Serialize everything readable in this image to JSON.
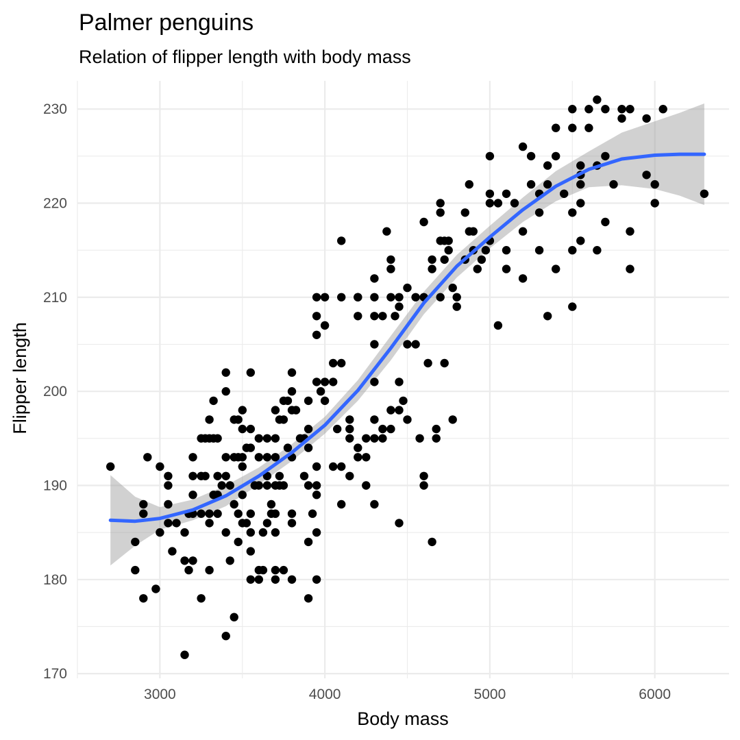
{
  "chart_data": {
    "type": "scatter",
    "title": "Palmer penguins",
    "subtitle": "Relation of flipper length with body mass",
    "xlabel": "Body mass",
    "ylabel": "Flipper length",
    "xlim": [
      2500,
      6450
    ],
    "ylim": [
      169.5,
      233
    ],
    "x_ticks": [
      3000,
      4000,
      5000,
      6000
    ],
    "y_ticks": [
      170,
      180,
      190,
      200,
      210,
      220,
      230
    ],
    "grid": true,
    "legend": "none",
    "colors": {
      "points": "#000000",
      "smooth_line": "#3366FF",
      "ribbon": "#999999"
    },
    "points": [
      [
        2700,
        192
      ],
      [
        2850,
        184
      ],
      [
        2850,
        181
      ],
      [
        2900,
        188
      ],
      [
        2900,
        187
      ],
      [
        2900,
        178
      ],
      [
        2925,
        193
      ],
      [
        2975,
        179
      ],
      [
        3000,
        185
      ],
      [
        3000,
        192
      ],
      [
        3050,
        191
      ],
      [
        3050,
        190
      ],
      [
        3050,
        186
      ],
      [
        3050,
        188
      ],
      [
        3075,
        183
      ],
      [
        3100,
        186
      ],
      [
        3150,
        185
      ],
      [
        3150,
        182
      ],
      [
        3150,
        172
      ],
      [
        3175,
        181
      ],
      [
        3175,
        187
      ],
      [
        3200,
        182
      ],
      [
        3200,
        191
      ],
      [
        3200,
        187
      ],
      [
        3200,
        193
      ],
      [
        3200,
        189
      ],
      [
        3250,
        195
      ],
      [
        3250,
        187
      ],
      [
        3250,
        178
      ],
      [
        3250,
        191
      ],
      [
        3275,
        191
      ],
      [
        3275,
        195
      ],
      [
        3300,
        186
      ],
      [
        3300,
        187
      ],
      [
        3300,
        197
      ],
      [
        3300,
        195
      ],
      [
        3300,
        181
      ],
      [
        3325,
        195
      ],
      [
        3325,
        199
      ],
      [
        3325,
        189
      ],
      [
        3350,
        195
      ],
      [
        3350,
        191
      ],
      [
        3350,
        187
      ],
      [
        3350,
        189
      ],
      [
        3375,
        190
      ],
      [
        3400,
        185
      ],
      [
        3400,
        191
      ],
      [
        3400,
        193
      ],
      [
        3400,
        200
      ],
      [
        3400,
        202
      ],
      [
        3400,
        174
      ],
      [
        3425,
        182
      ],
      [
        3425,
        190
      ],
      [
        3450,
        197
      ],
      [
        3450,
        193
      ],
      [
        3450,
        188
      ],
      [
        3450,
        176
      ],
      [
        3475,
        184
      ],
      [
        3475,
        187
      ],
      [
        3475,
        193
      ],
      [
        3475,
        197
      ],
      [
        3500,
        196
      ],
      [
        3500,
        189
      ],
      [
        3500,
        198
      ],
      [
        3500,
        192
      ],
      [
        3500,
        186
      ],
      [
        3500,
        193
      ],
      [
        3525,
        194
      ],
      [
        3525,
        186
      ],
      [
        3550,
        185
      ],
      [
        3550,
        183
      ],
      [
        3550,
        187
      ],
      [
        3550,
        180
      ],
      [
        3550,
        202
      ],
      [
        3550,
        194
      ],
      [
        3550,
        196
      ],
      [
        3575,
        190
      ],
      [
        3600,
        180
      ],
      [
        3600,
        195
      ],
      [
        3600,
        190
      ],
      [
        3600,
        193
      ],
      [
        3600,
        181
      ],
      [
        3625,
        185
      ],
      [
        3625,
        181
      ],
      [
        3650,
        193
      ],
      [
        3650,
        195
      ],
      [
        3650,
        191
      ],
      [
        3650,
        186
      ],
      [
        3650,
        190
      ],
      [
        3675,
        188
      ],
      [
        3675,
        187
      ],
      [
        3700,
        185
      ],
      [
        3700,
        190
      ],
      [
        3700,
        198
      ],
      [
        3700,
        193
      ],
      [
        3700,
        187
      ],
      [
        3700,
        180
      ],
      [
        3700,
        195
      ],
      [
        3700,
        181
      ],
      [
        3725,
        191
      ],
      [
        3725,
        197
      ],
      [
        3725,
        190
      ],
      [
        3750,
        190
      ],
      [
        3750,
        199
      ],
      [
        3750,
        197
      ],
      [
        3750,
        181
      ],
      [
        3775,
        199
      ],
      [
        3775,
        194
      ],
      [
        3800,
        193
      ],
      [
        3800,
        202
      ],
      [
        3800,
        187
      ],
      [
        3800,
        198
      ],
      [
        3800,
        180
      ],
      [
        3800,
        186
      ],
      [
        3800,
        200
      ],
      [
        3825,
        198
      ],
      [
        3850,
        195
      ],
      [
        3875,
        195
      ],
      [
        3875,
        191
      ],
      [
        3900,
        194
      ],
      [
        3900,
        196
      ],
      [
        3900,
        199
      ],
      [
        3900,
        190
      ],
      [
        3900,
        184
      ],
      [
        3900,
        178
      ],
      [
        3925,
        187
      ],
      [
        3950,
        201
      ],
      [
        3950,
        210
      ],
      [
        3950,
        208
      ],
      [
        3950,
        206
      ],
      [
        3950,
        192
      ],
      [
        3950,
        190
      ],
      [
        3950,
        189
      ],
      [
        3950,
        185
      ],
      [
        3950,
        180
      ],
      [
        3975,
        200
      ],
      [
        4000,
        201
      ],
      [
        4000,
        199
      ],
      [
        4000,
        210
      ],
      [
        4000,
        207
      ],
      [
        4050,
        203
      ],
      [
        4050,
        192
      ],
      [
        4050,
        201
      ],
      [
        4075,
        196
      ],
      [
        4100,
        203
      ],
      [
        4100,
        192
      ],
      [
        4100,
        188
      ],
      [
        4100,
        210
      ],
      [
        4100,
        216
      ],
      [
        4150,
        197
      ],
      [
        4150,
        196
      ],
      [
        4150,
        195
      ],
      [
        4150,
        191
      ],
      [
        4200,
        210
      ],
      [
        4200,
        210
      ],
      [
        4200,
        194
      ],
      [
        4200,
        193
      ],
      [
        4200,
        208
      ],
      [
        4250,
        195
      ],
      [
        4250,
        190
      ],
      [
        4250,
        193
      ],
      [
        4300,
        197
      ],
      [
        4300,
        195
      ],
      [
        4300,
        210
      ],
      [
        4300,
        212
      ],
      [
        4300,
        208
      ],
      [
        4300,
        205
      ],
      [
        4300,
        201
      ],
      [
        4300,
        188
      ],
      [
        4350,
        208
      ],
      [
        4350,
        196
      ],
      [
        4350,
        195
      ],
      [
        4375,
        217
      ],
      [
        4400,
        214
      ],
      [
        4400,
        213
      ],
      [
        4400,
        210
      ],
      [
        4400,
        196
      ],
      [
        4400,
        198
      ],
      [
        4425,
        208
      ],
      [
        4450,
        186
      ],
      [
        4450,
        201
      ],
      [
        4450,
        198
      ],
      [
        4450,
        209
      ],
      [
        4450,
        210
      ],
      [
        4475,
        199
      ],
      [
        4500,
        197
      ],
      [
        4500,
        211
      ],
      [
        4500,
        205
      ],
      [
        4550,
        210
      ],
      [
        4550,
        205
      ],
      [
        4575,
        195
      ],
      [
        4600,
        218
      ],
      [
        4600,
        210
      ],
      [
        4600,
        191
      ],
      [
        4600,
        190
      ],
      [
        4625,
        203
      ],
      [
        4650,
        214
      ],
      [
        4650,
        213
      ],
      [
        4650,
        184
      ],
      [
        4675,
        195
      ],
      [
        4675,
        196
      ],
      [
        4700,
        216
      ],
      [
        4700,
        210
      ],
      [
        4700,
        220
      ],
      [
        4700,
        219
      ],
      [
        4725,
        203
      ],
      [
        4725,
        214
      ],
      [
        4725,
        216
      ],
      [
        4750,
        215
      ],
      [
        4750,
        216
      ],
      [
        4775,
        197
      ],
      [
        4775,
        211
      ],
      [
        4800,
        210
      ],
      [
        4800,
        209
      ],
      [
        4850,
        214
      ],
      [
        4850,
        219
      ],
      [
        4875,
        222
      ],
      [
        4875,
        217
      ],
      [
        4900,
        217
      ],
      [
        4900,
        215
      ],
      [
        4925,
        213
      ],
      [
        4950,
        214
      ],
      [
        4975,
        215
      ],
      [
        5000,
        225
      ],
      [
        5000,
        220
      ],
      [
        5000,
        221
      ],
      [
        5000,
        216
      ],
      [
        5050,
        220
      ],
      [
        5050,
        207
      ],
      [
        5100,
        215
      ],
      [
        5100,
        221
      ],
      [
        5100,
        213
      ],
      [
        5150,
        220
      ],
      [
        5200,
        226
      ],
      [
        5200,
        217
      ],
      [
        5200,
        212
      ],
      [
        5250,
        225
      ],
      [
        5250,
        222
      ],
      [
        5300,
        221
      ],
      [
        5300,
        219
      ],
      [
        5300,
        215
      ],
      [
        5350,
        224
      ],
      [
        5350,
        222
      ],
      [
        5350,
        208
      ],
      [
        5400,
        228
      ],
      [
        5400,
        225
      ],
      [
        5400,
        213
      ],
      [
        5450,
        221
      ],
      [
        5500,
        230
      ],
      [
        5500,
        228
      ],
      [
        5500,
        219
      ],
      [
        5500,
        215
      ],
      [
        5500,
        209
      ],
      [
        5550,
        224
      ],
      [
        5550,
        223
      ],
      [
        5550,
        222
      ],
      [
        5550,
        220
      ],
      [
        5550,
        216
      ],
      [
        5600,
        230
      ],
      [
        5600,
        228
      ],
      [
        5650,
        231
      ],
      [
        5650,
        224
      ],
      [
        5650,
        215
      ],
      [
        5700,
        230
      ],
      [
        5700,
        225
      ],
      [
        5700,
        218
      ],
      [
        5750,
        222
      ],
      [
        5800,
        230
      ],
      [
        5800,
        229
      ],
      [
        5850,
        230
      ],
      [
        5850,
        217
      ],
      [
        5850,
        213
      ],
      [
        5950,
        229
      ],
      [
        5950,
        223
      ],
      [
        6000,
        222
      ],
      [
        6000,
        220
      ],
      [
        6050,
        230
      ],
      [
        6300,
        221
      ]
    ],
    "smooth": {
      "method": "loess",
      "x": [
        2700,
        2850,
        3000,
        3200,
        3400,
        3600,
        3800,
        4000,
        4200,
        4400,
        4600,
        4800,
        5000,
        5200,
        5400,
        5600,
        5800,
        6000,
        6150,
        6300
      ],
      "y": [
        186.3,
        186.2,
        186.5,
        187.4,
        188.9,
        191.0,
        193.5,
        196.4,
        200.1,
        204.6,
        209.4,
        213.3,
        216.4,
        219.3,
        221.8,
        223.6,
        224.7,
        225.1,
        225.2,
        225.2
      ],
      "lower": [
        181.5,
        183.6,
        185.3,
        186.3,
        187.8,
        190.1,
        192.6,
        195.5,
        199.0,
        203.3,
        208.2,
        212.1,
        215.2,
        218.0,
        220.2,
        221.7,
        221.9,
        221.5,
        220.8,
        219.8
      ],
      "upper": [
        191.1,
        188.8,
        187.7,
        188.5,
        190.0,
        191.9,
        194.4,
        197.3,
        201.2,
        205.9,
        210.6,
        214.5,
        217.6,
        220.6,
        223.4,
        225.5,
        227.5,
        228.7,
        229.6,
        230.6
      ]
    }
  }
}
